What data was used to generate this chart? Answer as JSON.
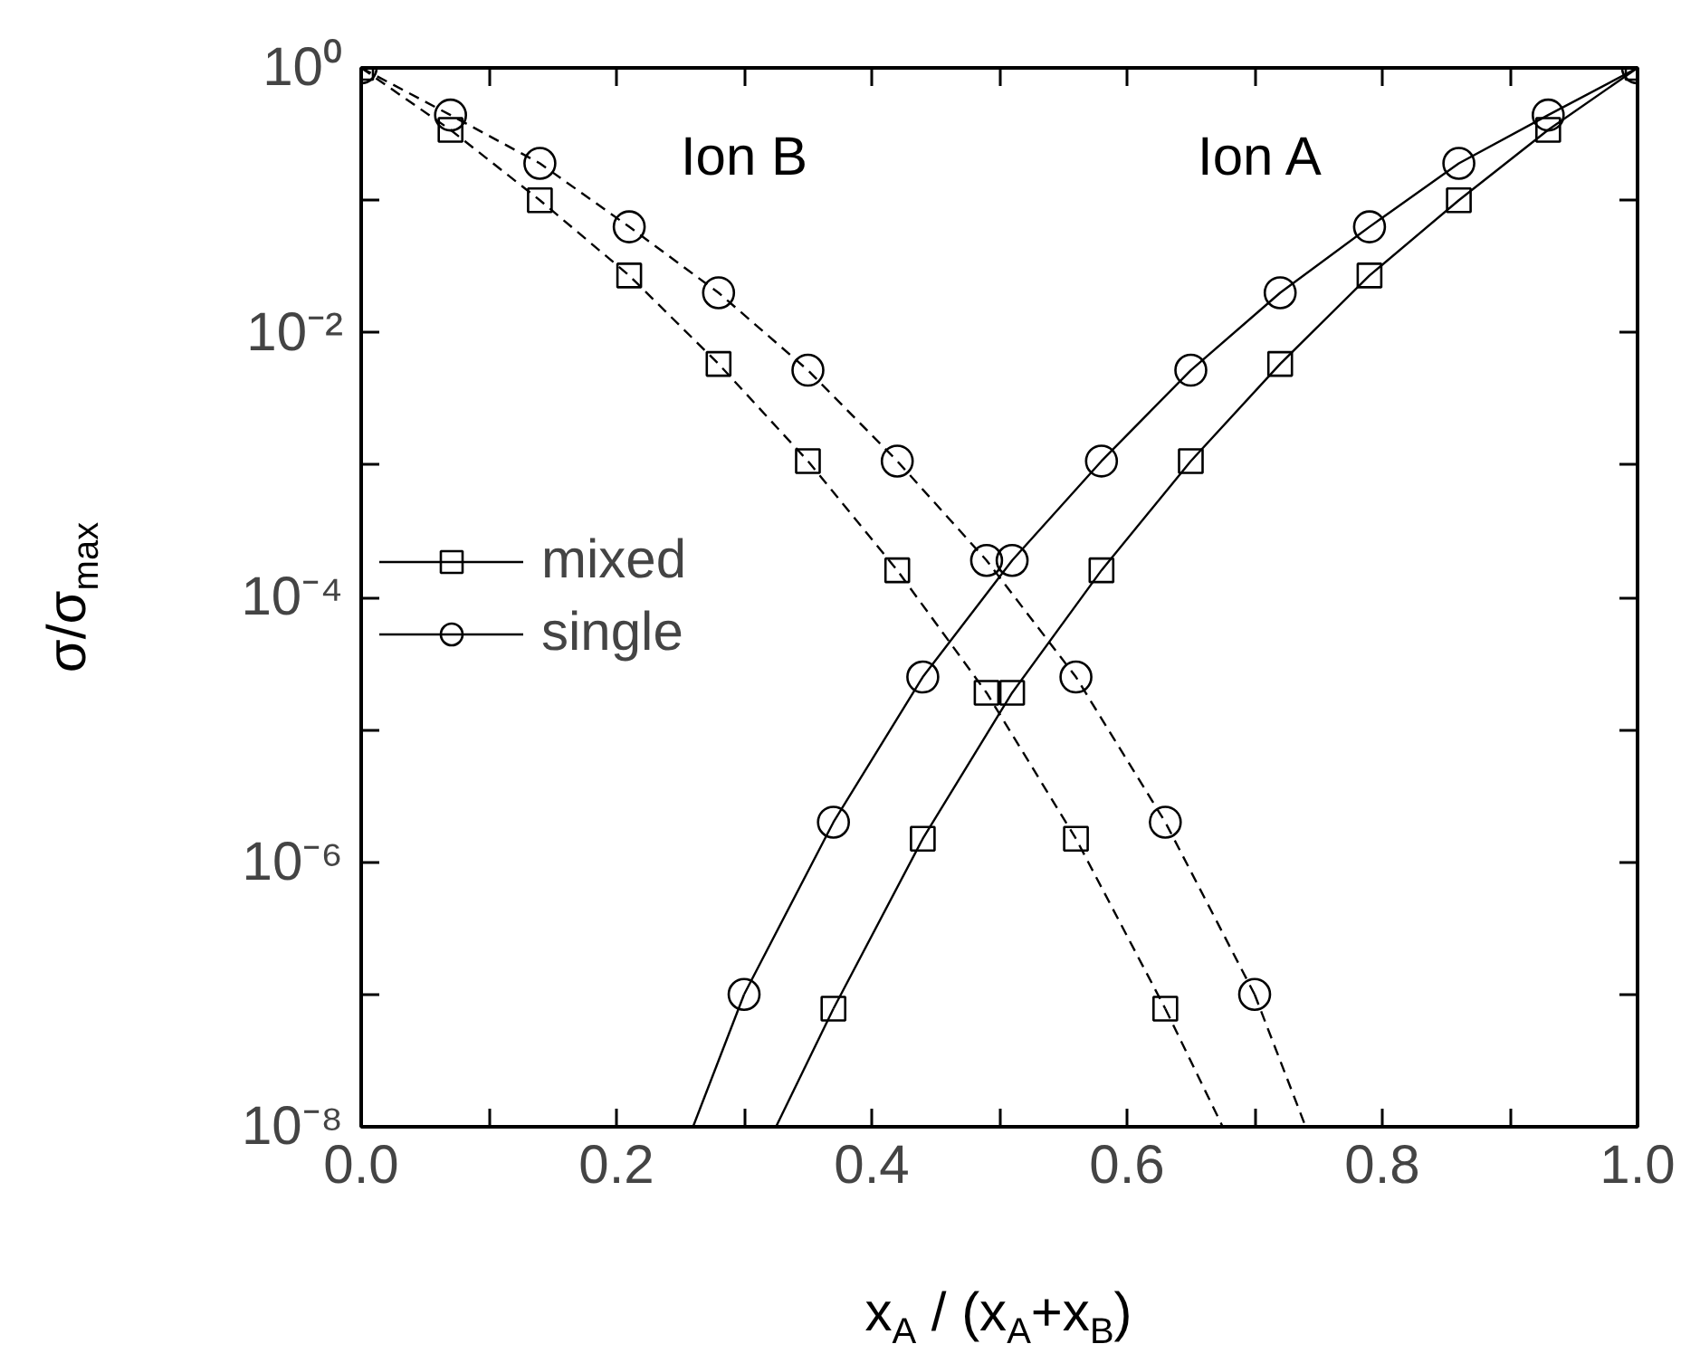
{
  "chart_data": {
    "type": "line",
    "xlabel": "x$_{A}$ / (x$_{A}$+x$_{B}$)",
    "ylabel": "σ/σ$_{max}$",
    "log": "y",
    "xlim": [
      0,
      1
    ],
    "ylim": [
      1e-08,
      1
    ],
    "xticks": [
      {
        "value": 0,
        "label": "0.0"
      },
      {
        "value": 0.1,
        "label": null
      },
      {
        "value": 0.2,
        "label": "0.2"
      },
      {
        "value": 0.3,
        "label": null
      },
      {
        "value": 0.4,
        "label": "0.4"
      },
      {
        "value": 0.5,
        "label": null
      },
      {
        "value": 0.6,
        "label": "0.6"
      },
      {
        "value": 0.7,
        "label": null
      },
      {
        "value": 0.8,
        "label": "0.8"
      },
      {
        "value": 0.9,
        "label": null
      },
      {
        "value": 1,
        "label": "1.0"
      }
    ],
    "yticks": [
      {
        "value": 1e-08,
        "label": "10⁻⁸"
      },
      {
        "value": 1e-07,
        "label": null
      },
      {
        "value": 1e-06,
        "label": "10⁻⁶"
      },
      {
        "value": 1e-05,
        "label": null
      },
      {
        "value": 0.0001,
        "label": "10⁻⁴"
      },
      {
        "value": 0.001,
        "label": null
      },
      {
        "value": 0.01,
        "label": "10⁻²"
      },
      {
        "value": 0.1,
        "label": null
      },
      {
        "value": 1,
        "label": "10⁰"
      }
    ],
    "grid": false,
    "legend": "left",
    "annotations": [
      "Ion B",
      "Ion A"
    ],
    "series": [
      {
        "name": "mixed",
        "color": "#000000",
        "marker": "square",
        "line_style": "solid",
        "x": [
          0.37,
          0.44,
          0.51,
          0.58,
          0.65,
          0.72,
          0.79,
          0.86,
          0.93,
          1.0
        ],
        "values": [
          7.8e-08,
          1.5e-06,
          1.9e-05,
          0.00016,
          0.00107,
          0.0058,
          0.027,
          0.1,
          0.34,
          1
        ]
      },
      {
        "name": "single",
        "color": "#000000",
        "marker": "circle",
        "line_style": "solid",
        "x": [
          0.3,
          0.37,
          0.44,
          0.51,
          0.58,
          0.65,
          0.72,
          0.79,
          0.86,
          0.93,
          1.0
        ],
        "values": [
          1e-07,
          2e-06,
          2.5e-05,
          0.00019,
          0.00107,
          0.0052,
          0.02,
          0.063,
          0.19,
          0.44,
          1
        ]
      },
      {
        "color": "#000000",
        "marker": "square",
        "line_style": "dashed",
        "x": [
          0.0,
          0.07,
          0.14,
          0.21,
          0.28,
          0.35,
          0.42,
          0.49,
          0.56,
          0.63
        ],
        "values": [
          1,
          0.34,
          0.1,
          0.027,
          0.0058,
          0.00107,
          0.00016,
          1.9e-05,
          1.5e-06,
          7.8e-08
        ]
      },
      {
        "color": "#000000",
        "marker": "circle",
        "line_style": "dashed",
        "x": [
          0.0,
          0.07,
          0.14,
          0.21,
          0.28,
          0.35,
          0.42,
          0.49,
          0.56,
          0.63,
          0.7
        ],
        "values": [
          1,
          0.44,
          0.19,
          0.063,
          0.02,
          0.0052,
          0.00107,
          0.00019,
          2.5e-05,
          2e-06,
          1e-07
        ]
      },
      {
        "color": "#000000",
        "marker": "none",
        "line_style": "solid",
        "x": [
          0.325,
          0.37
        ],
        "values": [
          1e-08,
          7.8e-08
        ]
      },
      {
        "color": "#000000",
        "marker": "none",
        "line_style": "solid",
        "x": [
          0.26,
          0.3
        ],
        "values": [
          1e-08,
          1e-07
        ]
      },
      {
        "color": "#000000",
        "marker": "none",
        "line_style": "dashed",
        "x": [
          0.63,
          0.675
        ],
        "values": [
          7.8e-08,
          1e-08
        ]
      },
      {
        "color": "#000000",
        "marker": "none",
        "line_style": "dashed",
        "x": [
          0.7,
          0.74
        ],
        "values": [
          1e-07,
          1e-08
        ]
      }
    ]
  }
}
